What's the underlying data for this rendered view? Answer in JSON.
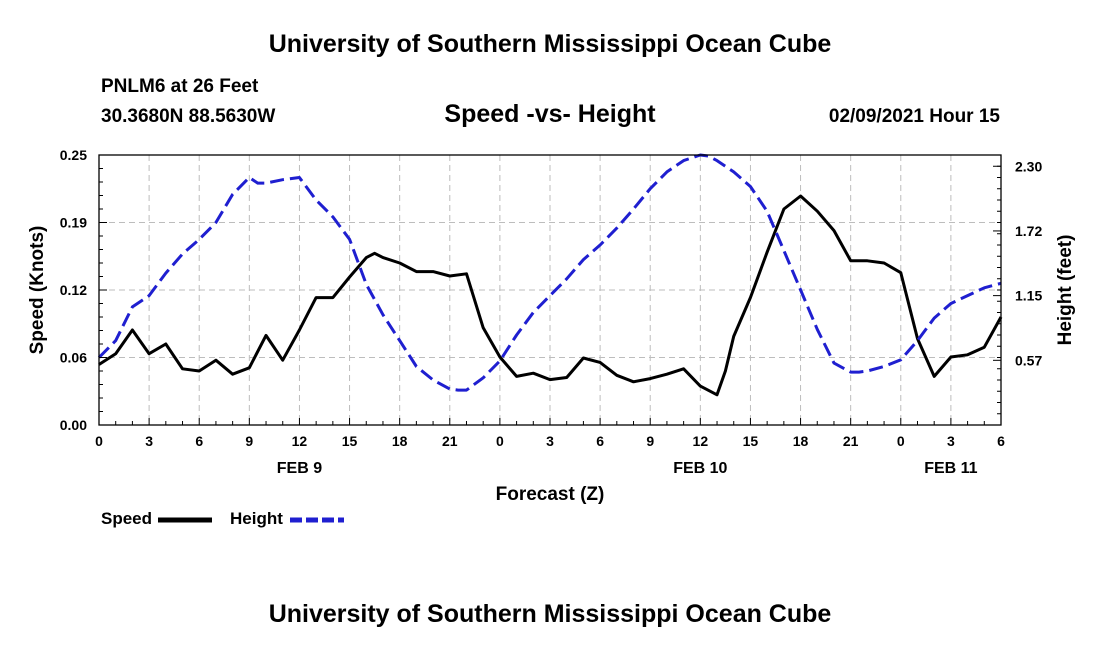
{
  "header": {
    "title": "University of Southern Mississippi Ocean Cube",
    "station": "PNLM6 at 26 Feet",
    "coords": "30.3680N 88.5630W",
    "chart_title": "Speed -vs- Height",
    "run_time": "02/09/2021 Hour 15"
  },
  "footer": {
    "title": "University of Southern Mississippi Ocean Cube"
  },
  "colors": {
    "speed": "#000000",
    "height": "#1f1fd0",
    "grid": "#bdbdbd"
  },
  "chart_data": {
    "type": "line",
    "title": "Speed -vs- Height",
    "xlabel": "Forecast (Z)",
    "y_left_label": "Speed (Knots)",
    "y_right_label": "Height (feet)",
    "x_range_hours": [
      0,
      54
    ],
    "y_left_range": [
      0,
      0.25
    ],
    "y_right_range": [
      0,
      2.4
    ],
    "y_left_ticks": [
      "0.00",
      "0.06",
      "0.12",
      "0.19",
      "0.25"
    ],
    "y_left_tick_values": [
      0,
      0.0625,
      0.125,
      0.1875,
      0.25
    ],
    "y_right_ticks": [
      "0.57",
      "1.15",
      "1.72",
      "2.30"
    ],
    "y_right_tick_values": [
      0.575,
      1.15,
      1.725,
      2.3
    ],
    "x_ticks": [
      {
        "hour": 0,
        "label": "0"
      },
      {
        "hour": 3,
        "label": "3"
      },
      {
        "hour": 6,
        "label": "6"
      },
      {
        "hour": 9,
        "label": "9"
      },
      {
        "hour": 12,
        "label": "12"
      },
      {
        "hour": 15,
        "label": "15"
      },
      {
        "hour": 18,
        "label": "18"
      },
      {
        "hour": 21,
        "label": "21"
      },
      {
        "hour": 24,
        "label": "0"
      },
      {
        "hour": 27,
        "label": "3"
      },
      {
        "hour": 30,
        "label": "6"
      },
      {
        "hour": 33,
        "label": "9"
      },
      {
        "hour": 36,
        "label": "12"
      },
      {
        "hour": 39,
        "label": "15"
      },
      {
        "hour": 42,
        "label": "18"
      },
      {
        "hour": 45,
        "label": "21"
      },
      {
        "hour": 48,
        "label": "0"
      },
      {
        "hour": 51,
        "label": "3"
      },
      {
        "hour": 54,
        "label": "6"
      }
    ],
    "date_labels": [
      {
        "hour": 12,
        "label": "FEB 9"
      },
      {
        "hour": 36,
        "label": "FEB 10"
      },
      {
        "hour": 51,
        "label": "FEB 11"
      }
    ],
    "legend": [
      {
        "name": "Speed",
        "style": "solid"
      },
      {
        "name": "Height",
        "style": "dashed"
      }
    ],
    "series": [
      {
        "name": "Speed",
        "axis": "left",
        "style": "solid",
        "x": [
          0,
          1,
          2,
          3,
          4,
          5,
          6,
          7,
          8,
          9,
          10,
          11,
          12,
          13,
          14,
          15,
          16,
          16.5,
          17,
          18,
          19,
          20,
          21,
          22,
          23,
          24,
          25,
          26,
          27,
          28,
          29,
          30,
          31,
          32,
          33,
          34,
          35,
          36,
          37,
          37.5,
          38,
          39,
          40,
          41,
          42,
          43,
          44,
          45,
          46,
          47,
          48,
          49,
          50,
          51,
          52,
          53,
          54
        ],
        "values": [
          0.056,
          0.066,
          0.088,
          0.066,
          0.075,
          0.052,
          0.05,
          0.06,
          0.047,
          0.053,
          0.083,
          0.06,
          0.088,
          0.118,
          0.118,
          0.137,
          0.155,
          0.159,
          0.155,
          0.15,
          0.142,
          0.142,
          0.138,
          0.14,
          0.09,
          0.063,
          0.045,
          0.048,
          0.042,
          0.044,
          0.062,
          0.058,
          0.046,
          0.04,
          0.043,
          0.047,
          0.052,
          0.036,
          0.028,
          0.05,
          0.082,
          0.118,
          0.16,
          0.2,
          0.212,
          0.198,
          0.18,
          0.152,
          0.152,
          0.15,
          0.141,
          0.08,
          0.045,
          0.063,
          0.065,
          0.072,
          0.1
        ]
      },
      {
        "name": "Height",
        "axis": "right",
        "style": "dashed",
        "x": [
          0,
          1,
          2,
          3,
          4,
          5,
          6,
          7,
          8,
          9,
          9.5,
          10,
          11,
          12,
          13,
          14,
          15,
          16,
          17,
          18,
          19,
          20,
          21,
          21.5,
          22,
          23,
          24,
          25,
          26,
          27,
          28,
          29,
          30,
          31,
          32,
          33,
          34,
          35,
          36,
          36.5,
          37,
          38,
          39,
          40,
          41,
          42,
          43,
          44,
          45,
          45.5,
          46,
          47,
          48,
          49,
          50,
          51,
          52,
          53,
          54
        ],
        "values": [
          0.6,
          0.75,
          1.05,
          1.15,
          1.35,
          1.52,
          1.65,
          1.8,
          2.05,
          2.2,
          2.15,
          2.15,
          2.18,
          2.2,
          2.0,
          1.85,
          1.65,
          1.25,
          0.98,
          0.75,
          0.52,
          0.4,
          0.32,
          0.31,
          0.31,
          0.42,
          0.57,
          0.8,
          1.0,
          1.15,
          1.3,
          1.47,
          1.6,
          1.75,
          1.92,
          2.1,
          2.25,
          2.35,
          2.4,
          2.39,
          2.35,
          2.25,
          2.12,
          1.9,
          1.55,
          1.2,
          0.85,
          0.55,
          0.47,
          0.47,
          0.48,
          0.52,
          0.58,
          0.75,
          0.95,
          1.08,
          1.15,
          1.22,
          1.26
        ]
      }
    ]
  }
}
